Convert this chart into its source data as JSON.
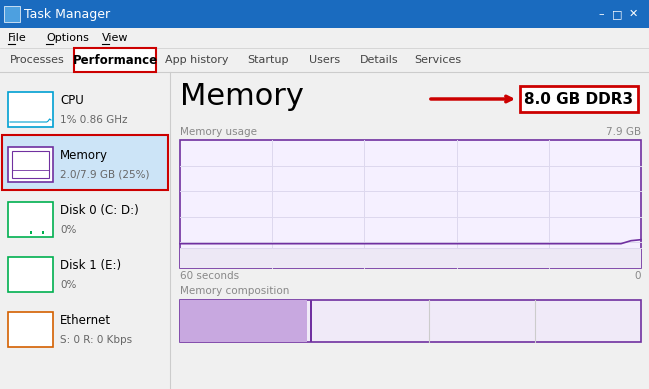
{
  "title_bar_text": "Task Manager",
  "title_bar_bg": "#1a6bbf",
  "title_bar_text_color": "#ffffff",
  "menu_items": [
    "File",
    "Options",
    "View"
  ],
  "tab_items": [
    "Processes",
    "Performance",
    "App history",
    "Startup",
    "Users",
    "Details",
    "Services"
  ],
  "tab_widths": [
    70,
    82,
    78,
    60,
    50,
    54,
    60
  ],
  "active_tab": "Performance",
  "active_tab_border": "#cc0000",
  "window_bg": "#f0f0f0",
  "left_panel_selected_bg": "#cce4f7",
  "left_panel_selected_border": "#cc0000",
  "sidebar_items": [
    {
      "name": "CPU",
      "sub": "1% 0.86 GHz",
      "color": "#00a0d2",
      "type": "cpu"
    },
    {
      "name": "Memory",
      "sub": "2.0/7.9 GB (25%)",
      "color": "#7030a0",
      "type": "memory",
      "selected": true
    },
    {
      "name": "Disk 0 (C: D:)",
      "sub": "0%",
      "color": "#00b050",
      "type": "disk"
    },
    {
      "name": "Disk 1 (E:)",
      "sub": "0%",
      "color": "#00b050",
      "type": "disk2"
    },
    {
      "name": "Ethernet",
      "sub": "S: 0 R: 0 Kbps",
      "color": "#d46000",
      "type": "ethernet"
    }
  ],
  "main_title": "Memory",
  "memory_label": "8.0 GB DDR3",
  "memory_label_border": "#cc0000",
  "arrow_color": "#cc0000",
  "usage_label": "Memory usage",
  "usage_max": "7.9 GB",
  "time_label": "60 seconds",
  "time_right": "0",
  "composition_label": "Memory composition",
  "chart_border_color": "#7030a0",
  "chart_bg": "#f5f0ff",
  "chart_line_color": "#7030a0",
  "chart_grid_color": "#ddd8ee",
  "composition_seg1_color": "#c8a8e0",
  "composition_bg": "#f0eaf8",
  "composition_divider_color": "#7030a0",
  "cpu_line_vals": [
    2,
    2,
    2,
    2,
    2,
    2,
    2,
    2,
    2,
    2,
    2,
    2,
    2,
    2,
    2,
    2,
    2,
    2,
    2,
    2,
    2,
    2,
    2,
    2,
    2,
    2,
    2,
    3,
    5,
    4
  ],
  "disk_line_vals": [
    0,
    0,
    0,
    0,
    0,
    0,
    0,
    0,
    0,
    0,
    0,
    0,
    0,
    0,
    5,
    3,
    0,
    0,
    0,
    0,
    0,
    0,
    0,
    5,
    3,
    0,
    0,
    0,
    0,
    0
  ]
}
